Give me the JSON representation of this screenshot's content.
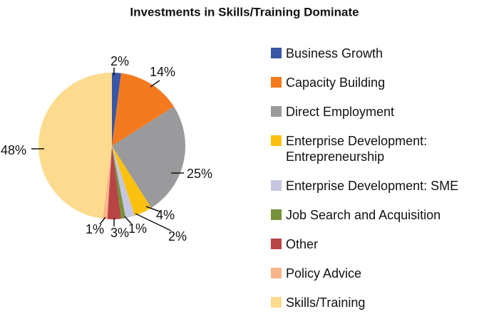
{
  "chart_data": {
    "type": "pie",
    "title": "Investments in Skills/Training Dominate",
    "categories": [
      "Business Growth",
      "Capacity Building",
      "Direct Employment",
      "Enterprise Development: Entrepreneurship",
      "Enterprise Development: SME",
      "Job Search and Acquisition",
      "Other",
      "Policy Advice",
      "Skills/Training"
    ],
    "values": [
      2,
      14,
      25,
      4,
      2,
      1,
      3,
      1,
      48
    ],
    "value_labels": [
      "2%",
      "14%",
      "25%",
      "4%",
      "2%",
      "1%",
      "3%",
      "1%",
      "48%"
    ],
    "colors": [
      "#3a56a6",
      "#f47a20",
      "#9a9a9c",
      "#fcc10f",
      "#c6c5e2",
      "#77923a",
      "#b94446",
      "#f9b589",
      "#fddb8e"
    ],
    "legend": "right"
  }
}
